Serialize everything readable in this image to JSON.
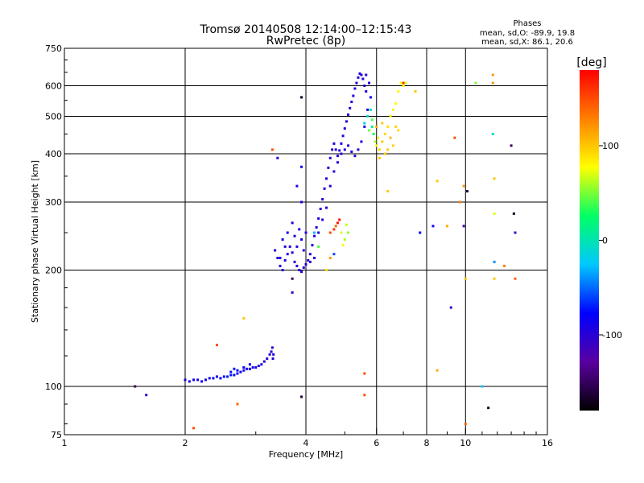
{
  "chart_data": {
    "type": "scatter",
    "title": "Tromsø 20140508 12:14:00–12:15:43",
    "subtitle": "RwPretec (8p)",
    "stats": {
      "heading": "Phases",
      "line1": "mean, sd,O: -89.9, 19.8",
      "line2": "mean, sd,X: 86.1, 20.6"
    },
    "xlabel": "Frequency [MHz]",
    "ylabel": "Stationary phase Virtual Height [km]",
    "x_scale": "log",
    "y_scale": "log",
    "xlim": [
      1,
      16
    ],
    "ylim": [
      75,
      750
    ],
    "x_ticks": [
      {
        "value": 1,
        "label": "1"
      },
      {
        "value": 2,
        "label": "2"
      },
      {
        "value": 4,
        "label": "4"
      },
      {
        "value": 6,
        "label": "6"
      },
      {
        "value": 8,
        "label": "8"
      },
      {
        "value": 10,
        "label": "10"
      },
      {
        "value": 16,
        "label": "16"
      }
    ],
    "y_ticks": [
      {
        "value": 75,
        "label": "75"
      },
      {
        "value": 100,
        "label": "100"
      },
      {
        "value": 200,
        "label": "200"
      },
      {
        "value": 300,
        "label": "300"
      },
      {
        "value": 400,
        "label": "400"
      },
      {
        "value": 500,
        "label": "500"
      },
      {
        "value": 600,
        "label": "600"
      },
      {
        "value": 750,
        "label": "750"
      }
    ],
    "grid_x": [
      2,
      4,
      6,
      8,
      10
    ],
    "grid_y": [
      100,
      200,
      300,
      400,
      500,
      600
    ],
    "colorbar": {
      "title": "[deg]",
      "range": [
        -180,
        180
      ],
      "ticks": [
        {
          "value": 100,
          "label": "100"
        },
        {
          "value": 0,
          "label": "0"
        },
        {
          "value": -100,
          "label": "-100"
        }
      ],
      "colors": [
        "#000000",
        "#5a00a0",
        "#0000ff",
        "#00c8ff",
        "#00ff64",
        "#ffff00",
        "#ff8000",
        "#ff0000"
      ]
    },
    "traces": [
      {
        "name": "",
        "points": [
          [
            2.0,
            104,
            -95
          ],
          [
            2.05,
            103,
            -90
          ],
          [
            2.1,
            104,
            -92
          ],
          [
            2.15,
            104,
            -88
          ],
          [
            2.2,
            103,
            -85
          ],
          [
            2.25,
            104,
            -90
          ],
          [
            2.3,
            105,
            -87
          ],
          [
            2.35,
            105,
            -80
          ],
          [
            2.4,
            106,
            -78
          ],
          [
            2.45,
            105,
            -82
          ],
          [
            2.5,
            106,
            -75
          ],
          [
            2.55,
            106,
            -70
          ],
          [
            2.6,
            107,
            -72
          ],
          [
            2.65,
            107,
            -78
          ],
          [
            2.7,
            108,
            -80
          ],
          [
            2.75,
            109,
            -82
          ],
          [
            2.8,
            110,
            -88
          ],
          [
            2.85,
            111,
            -85
          ],
          [
            2.9,
            111,
            -90
          ],
          [
            2.95,
            112,
            -88
          ],
          [
            3.0,
            112,
            -92
          ],
          [
            3.05,
            113,
            -95
          ],
          [
            3.1,
            114,
            -93
          ],
          [
            3.15,
            116,
            -95
          ],
          [
            3.2,
            118,
            -97
          ],
          [
            3.25,
            121,
            -95
          ],
          [
            3.28,
            123,
            -98
          ],
          [
            3.3,
            126,
            -100
          ],
          [
            3.32,
            121,
            -98
          ],
          [
            3.31,
            118,
            -96
          ],
          [
            2.6,
            109,
            -75
          ],
          [
            2.7,
            110,
            -77
          ],
          [
            2.8,
            112,
            -80
          ],
          [
            2.9,
            114,
            -82
          ],
          [
            2.65,
            111,
            -70
          ]
        ]
      },
      {
        "name": "",
        "points": [
          [
            3.35,
            225,
            -95
          ],
          [
            3.4,
            215,
            -97
          ],
          [
            3.45,
            205,
            -93
          ],
          [
            3.5,
            200,
            -96
          ],
          [
            3.55,
            212,
            -92
          ],
          [
            3.6,
            220,
            -95
          ],
          [
            3.65,
            230,
            -97
          ],
          [
            3.7,
            222,
            -94
          ],
          [
            3.75,
            210,
            -96
          ],
          [
            3.8,
            205,
            -93
          ],
          [
            3.85,
            200,
            -98
          ],
          [
            3.9,
            198,
            -95
          ],
          [
            3.95,
            203,
            -97
          ],
          [
            4.0,
            207,
            -94
          ],
          [
            4.05,
            212,
            -96
          ],
          [
            4.1,
            220,
            -97
          ],
          [
            4.15,
            232,
            -95
          ],
          [
            4.2,
            245,
            -93
          ],
          [
            4.25,
            258,
            -96
          ],
          [
            4.3,
            272,
            -95
          ],
          [
            4.35,
            288,
            -97
          ],
          [
            4.4,
            305,
            -94
          ],
          [
            4.45,
            325,
            -96
          ],
          [
            4.5,
            345,
            -95
          ],
          [
            4.55,
            368,
            -97
          ],
          [
            4.6,
            390,
            -95
          ],
          [
            4.65,
            410,
            -96
          ],
          [
            4.7,
            425,
            -94
          ],
          [
            4.75,
            410,
            -96
          ],
          [
            4.8,
            395,
            -95
          ],
          [
            4.85,
            408,
            -97
          ],
          [
            4.9,
            425,
            -95
          ],
          [
            4.95,
            445,
            -96
          ],
          [
            5.0,
            465,
            -94
          ],
          [
            5.05,
            485,
            -96
          ],
          [
            5.1,
            505,
            -95
          ],
          [
            5.15,
            525,
            -97
          ],
          [
            5.2,
            545,
            -95
          ],
          [
            5.25,
            565,
            -96
          ],
          [
            5.3,
            590,
            -94
          ],
          [
            5.35,
            610,
            -96
          ],
          [
            5.4,
            630,
            -95
          ],
          [
            5.45,
            645,
            -97
          ],
          [
            5.5,
            640,
            -95
          ],
          [
            5.55,
            625,
            -96
          ],
          [
            5.6,
            600,
            -94
          ],
          [
            5.65,
            580,
            -96
          ],
          [
            3.5,
            240,
            -90
          ],
          [
            3.6,
            250,
            -88
          ],
          [
            3.7,
            265,
            -92
          ],
          [
            3.9,
            240,
            -90
          ],
          [
            4.0,
            250,
            -93
          ],
          [
            3.8,
            230,
            -95
          ],
          [
            3.95,
            225,
            -92
          ],
          [
            4.1,
            210,
            -98
          ],
          [
            3.45,
            215,
            -94
          ],
          [
            3.55,
            230,
            -96
          ],
          [
            3.75,
            245,
            -91
          ],
          [
            3.85,
            255,
            -93
          ],
          [
            4.2,
            215,
            -97
          ],
          [
            4.3,
            250,
            -95
          ],
          [
            4.4,
            270,
            -94
          ],
          [
            4.5,
            290,
            -96
          ],
          [
            4.6,
            330,
            -93
          ],
          [
            4.7,
            360,
            -95
          ],
          [
            4.8,
            380,
            -92
          ],
          [
            4.9,
            400,
            -95
          ],
          [
            5.0,
            410,
            -94
          ],
          [
            5.1,
            420,
            -96
          ],
          [
            5.2,
            405,
            -95
          ],
          [
            5.3,
            395,
            -93
          ],
          [
            5.4,
            410,
            -96
          ],
          [
            5.5,
            430,
            -94
          ],
          [
            5.6,
            470,
            -95
          ],
          [
            5.7,
            520,
            -90
          ],
          [
            5.8,
            560,
            -88
          ],
          [
            5.75,
            610,
            -92
          ],
          [
            5.65,
            640,
            -94
          ]
        ]
      },
      {
        "name": "",
        "points": [
          [
            5.6,
            480,
            -20
          ],
          [
            5.7,
            500,
            -10
          ],
          [
            5.8,
            520,
            0
          ],
          [
            5.85,
            470,
            10
          ],
          [
            5.9,
            450,
            30
          ],
          [
            5.95,
            430,
            60
          ],
          [
            6.0,
            420,
            80
          ],
          [
            6.05,
            440,
            90
          ],
          [
            6.1,
            410,
            95
          ],
          [
            6.2,
            430,
            100
          ],
          [
            6.3,
            450,
            92
          ],
          [
            6.4,
            470,
            88
          ],
          [
            6.5,
            500,
            85
          ],
          [
            6.6,
            520,
            80
          ],
          [
            6.7,
            540,
            78
          ],
          [
            6.8,
            580,
            82
          ],
          [
            6.9,
            610,
            80
          ],
          [
            7.0,
            600,
            75
          ],
          [
            6.2,
            480,
            98
          ],
          [
            6.4,
            410,
            100
          ],
          [
            6.6,
            420,
            95
          ],
          [
            6.1,
            390,
            100
          ],
          [
            6.3,
            400,
            96
          ],
          [
            5.75,
            460,
            50
          ],
          [
            5.85,
            490,
            40
          ],
          [
            6.0,
            470,
            110
          ],
          [
            6.5,
            440,
            105
          ],
          [
            6.7,
            470,
            95
          ],
          [
            6.8,
            460,
            90
          ],
          [
            7.1,
            610,
            70
          ]
        ]
      },
      {
        "name": "",
        "points": [
          [
            4.6,
            250,
            150
          ],
          [
            4.7,
            255,
            160
          ],
          [
            4.8,
            265,
            170
          ],
          [
            4.85,
            270,
            175
          ],
          [
            4.75,
            260,
            140
          ],
          [
            4.9,
            250,
            70
          ],
          [
            5.0,
            240,
            60
          ],
          [
            5.1,
            250,
            55
          ],
          [
            5.05,
            262,
            65
          ],
          [
            4.95,
            232,
            80
          ]
        ]
      },
      {
        "name": "",
        "points": [
          [
            1.5,
            100,
            -150
          ],
          [
            1.6,
            95,
            -95
          ],
          [
            3.3,
            410,
            150
          ],
          [
            2.4,
            128,
            150
          ],
          [
            2.8,
            150,
            100
          ],
          [
            2.7,
            90,
            140
          ],
          [
            2.1,
            78,
            150
          ],
          [
            3.4,
            390,
            -100
          ],
          [
            3.9,
            560,
            -170
          ],
          [
            3.9,
            370,
            -90
          ],
          [
            3.8,
            330,
            -95
          ],
          [
            3.9,
            300,
            -90
          ],
          [
            3.7,
            190,
            -150
          ],
          [
            3.7,
            175,
            -100
          ],
          [
            3.9,
            94,
            -160
          ],
          [
            4.2,
            250,
            -30
          ],
          [
            4.3,
            230,
            40
          ],
          [
            4.5,
            200,
            90
          ],
          [
            4.6,
            215,
            120
          ],
          [
            4.7,
            220,
            -60
          ],
          [
            5.6,
            108,
            150
          ],
          [
            5.6,
            95,
            150
          ],
          [
            6.4,
            320,
            100
          ],
          [
            7.0,
            610,
            160
          ],
          [
            7.5,
            580,
            100
          ],
          [
            7.7,
            250,
            -80
          ],
          [
            8.3,
            260,
            -90
          ],
          [
            8.5,
            110,
            110
          ],
          [
            8.5,
            340,
            100
          ],
          [
            9.0,
            260,
            110
          ],
          [
            9.2,
            160,
            -100
          ],
          [
            9.4,
            440,
            150
          ],
          [
            9.7,
            300,
            130
          ],
          [
            9.9,
            330,
            120
          ],
          [
            9.9,
            260,
            -110
          ],
          [
            10.0,
            80,
            140
          ],
          [
            10.0,
            190,
            100
          ],
          [
            10.1,
            320,
            -160
          ],
          [
            10.6,
            610,
            50
          ],
          [
            11.0,
            100,
            -20
          ],
          [
            11.4,
            88,
            -170
          ],
          [
            11.7,
            640,
            120
          ],
          [
            11.7,
            610,
            120
          ],
          [
            11.7,
            450,
            -10
          ],
          [
            11.8,
            345,
            100
          ],
          [
            11.8,
            280,
            70
          ],
          [
            11.8,
            210,
            -40
          ],
          [
            11.8,
            190,
            100
          ],
          [
            12.5,
            205,
            130
          ],
          [
            13.0,
            420,
            -150
          ],
          [
            13.2,
            280,
            -170
          ],
          [
            13.3,
            250,
            -110
          ],
          [
            13.3,
            190,
            140
          ]
        ]
      }
    ]
  }
}
